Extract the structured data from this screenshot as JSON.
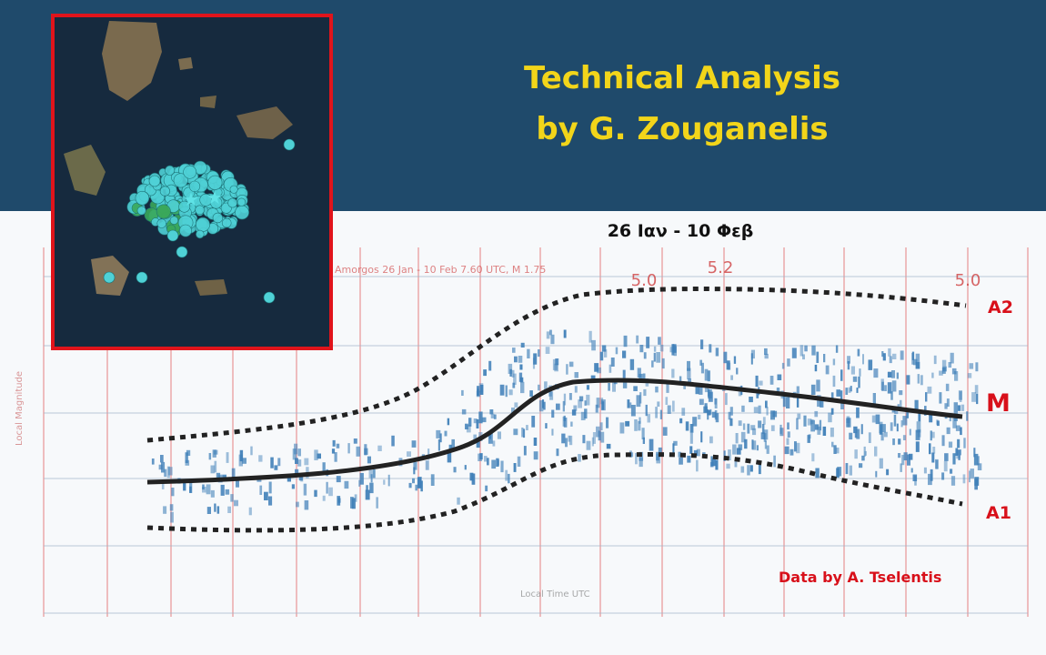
{
  "header": {
    "title_line1": "Technical Analysis",
    "title_line2": "by G. Zouganelis"
  },
  "chart_data": {
    "type": "scatter",
    "subtitle": "26 Ιαν - 10 Φεβ",
    "faint_header": "Amorgos 26 Jan - 10 Feb 7.60 UTC, M 1.75",
    "curve_labels": {
      "upper": "A2",
      "mean": "M",
      "lower": "A1"
    },
    "top_ticks": [
      "5.0",
      "5.2",
      "5.0"
    ],
    "credit": "Data by A. Tselentis",
    "faint_axis_title": "Local Magnitude",
    "faint_x_label": "Local Time UTC",
    "colors": {
      "points": "#3f7fb8",
      "curves": "#222222",
      "labels": "#d8101a",
      "gridlines": "#e36b6b",
      "title": "#f2d51a",
      "inset_border": "#e0141b"
    }
  },
  "map_inset": {
    "description_icon": "earthquake-epicenter-map",
    "marker_colors": [
      "#4fd1d6",
      "#3aa85a",
      "#5fe3e6"
    ]
  }
}
